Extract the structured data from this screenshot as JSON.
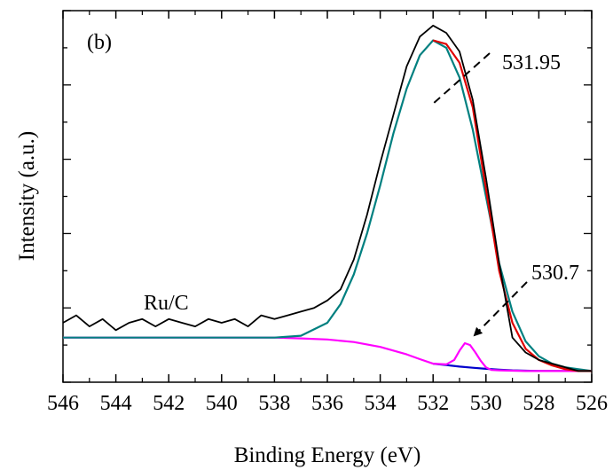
{
  "chart_data": {
    "type": "line",
    "panel_label": "(b)",
    "sample_label": "Ru/C",
    "xlabel": "Binding Energy (eV)",
    "ylabel": "Intensity (a.u.)",
    "xlim": [
      546,
      526
    ],
    "x_reversed": true,
    "ylim": [
      0,
      1
    ],
    "y_tick_labels_shown": false,
    "x_ticks": [
      546,
      544,
      542,
      540,
      538,
      536,
      534,
      532,
      530,
      528,
      526
    ],
    "x_tick_labels": [
      "546",
      "544",
      "542",
      "540",
      "538",
      "536",
      "534",
      "532",
      "530",
      "528",
      "526"
    ],
    "grid": false,
    "series": [
      {
        "role": "raw-spectrum",
        "color": "#000000",
        "x": [
          546,
          545.5,
          545,
          544.5,
          544,
          543.5,
          543,
          542.5,
          542,
          541.5,
          541,
          540.5,
          540,
          539.5,
          539,
          538.5,
          538,
          537.5,
          537,
          536.5,
          536,
          535.5,
          535,
          534.5,
          534,
          533.5,
          533,
          532.5,
          532,
          531.5,
          531,
          530.5,
          530,
          529.5,
          529,
          528.5,
          528,
          527.5,
          527,
          526.5,
          526
        ],
        "y": [
          0.16,
          0.18,
          0.15,
          0.17,
          0.14,
          0.16,
          0.17,
          0.15,
          0.17,
          0.16,
          0.15,
          0.17,
          0.16,
          0.17,
          0.15,
          0.18,
          0.17,
          0.18,
          0.19,
          0.2,
          0.22,
          0.25,
          0.33,
          0.45,
          0.59,
          0.72,
          0.85,
          0.93,
          0.96,
          0.94,
          0.89,
          0.76,
          0.55,
          0.32,
          0.12,
          0.08,
          0.06,
          0.05,
          0.04,
          0.03,
          0.03
        ]
      },
      {
        "role": "envelope-fit",
        "color": "#e00000",
        "x": [
          532,
          531.5,
          531,
          530.5,
          530,
          529.5,
          529,
          528.5,
          528,
          527.5,
          527,
          526.5,
          526
        ],
        "y": [
          0.92,
          0.91,
          0.86,
          0.74,
          0.52,
          0.3,
          0.16,
          0.09,
          0.06,
          0.045,
          0.035,
          0.03,
          0.03
        ]
      },
      {
        "role": "peak-531.95",
        "color": "#008080",
        "x": [
          546,
          544,
          542,
          540,
          539,
          538,
          537,
          536,
          535.5,
          535,
          534.5,
          534,
          533.5,
          533,
          532.5,
          532,
          531.5,
          531,
          530.5,
          530,
          529.5,
          529,
          528.5,
          528,
          527.5,
          527,
          526.5,
          526
        ],
        "y": [
          0.12,
          0.12,
          0.12,
          0.12,
          0.12,
          0.12,
          0.125,
          0.16,
          0.21,
          0.29,
          0.4,
          0.53,
          0.67,
          0.79,
          0.88,
          0.92,
          0.9,
          0.82,
          0.68,
          0.5,
          0.32,
          0.19,
          0.11,
          0.07,
          0.05,
          0.04,
          0.035,
          0.03
        ]
      },
      {
        "role": "peak-530.7",
        "color": "#ff00ff",
        "x": [
          546,
          544,
          542,
          540,
          538,
          537,
          536,
          535,
          534,
          533,
          532.5,
          532,
          531.5,
          531.2,
          531,
          530.8,
          530.6,
          530.4,
          530.2,
          530,
          529.8,
          529.5,
          529,
          528.5,
          528,
          527,
          526
        ],
        "y": [
          0.12,
          0.12,
          0.12,
          0.12,
          0.12,
          0.118,
          0.115,
          0.108,
          0.095,
          0.075,
          0.062,
          0.05,
          0.048,
          0.06,
          0.085,
          0.105,
          0.1,
          0.08,
          0.058,
          0.04,
          0.033,
          0.032,
          0.031,
          0.03,
          0.03,
          0.03,
          0.03
        ]
      },
      {
        "role": "background",
        "color": "#0000cc",
        "x": [
          532,
          531.5,
          531,
          530.5,
          530,
          529.5,
          529,
          528.5,
          528,
          527,
          526
        ],
        "y": [
          0.05,
          0.046,
          0.042,
          0.039,
          0.036,
          0.034,
          0.032,
          0.031,
          0.03,
          0.03,
          0.03
        ]
      }
    ],
    "annotations": [
      {
        "text": "531.95",
        "x": 531.95
      },
      {
        "text": "530.7",
        "x": 530.7
      }
    ]
  }
}
